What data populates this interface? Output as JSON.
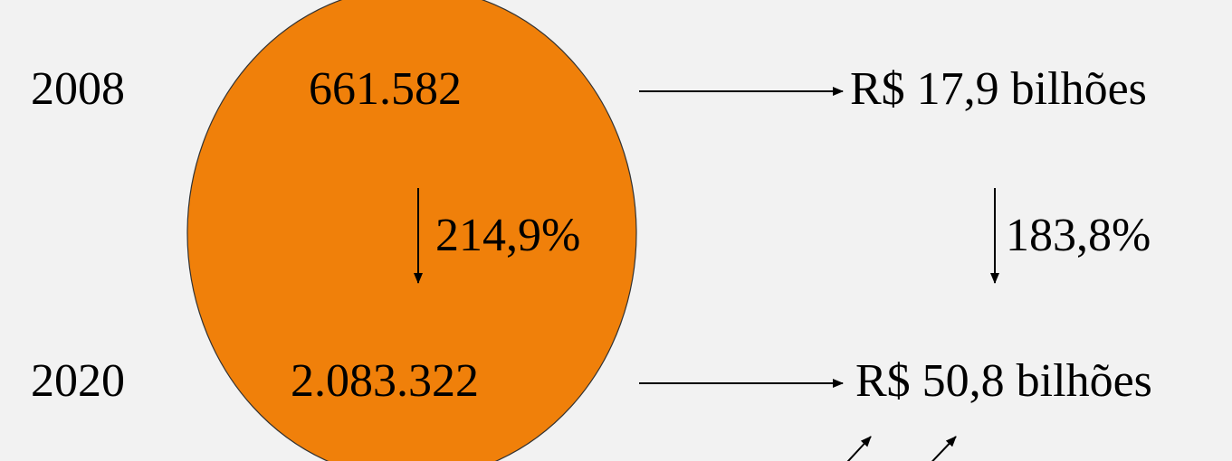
{
  "years": {
    "start": "2008",
    "end": "2020"
  },
  "circle": {
    "value_start": "661.582",
    "value_end": "2.083.322",
    "growth": "214,9%",
    "fill_color": "#f0800a"
  },
  "amounts": {
    "start": "R$ 17,9 bilhões",
    "end": "R$ 50,8 bilhões",
    "growth": "183,8%"
  }
}
